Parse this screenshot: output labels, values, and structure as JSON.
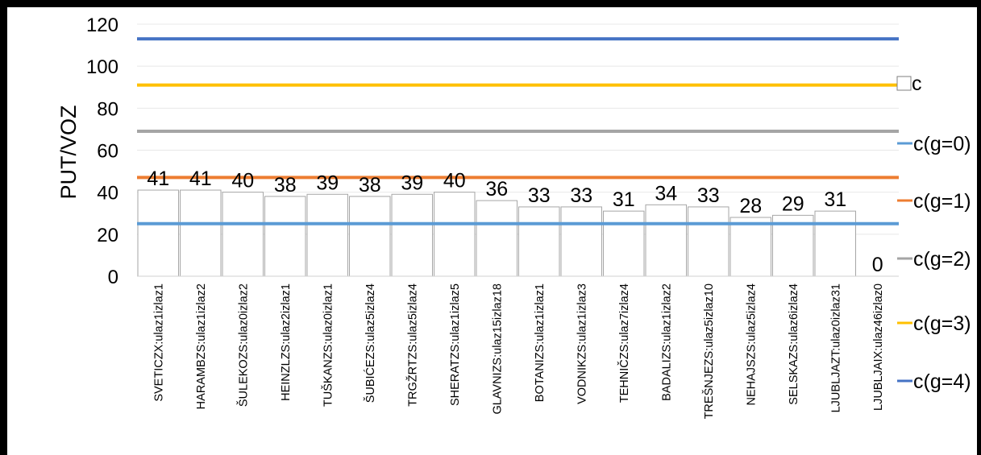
{
  "chart_data": {
    "type": "bar",
    "ylabel": "PUT/VOZ",
    "ylim": [
      0,
      120
    ],
    "yticks": [
      0,
      20,
      40,
      60,
      80,
      100,
      120
    ],
    "grid": true,
    "legend_position": "right",
    "categories": [
      "SVETICZX:ulaz1izlaz1",
      "HARAMBZS:ulaz1izlaz2",
      "ŠULEKOZS:ulaz0izlaz2",
      "HEINZLZS:ulaz2izlaz1",
      "TUŠKANZS:ulaz0izlaz1",
      "ŠUBIĆEZS:ulaz5izlaz4",
      "TRGŽRTZS:ulaz5izlaz4",
      "SHERATZS:ulaz1izlaz5",
      "GLAVNIZS:ulaz15izlaz18",
      "BOTANIZS:ulaz1izlaz1",
      "VODNIKZS:ulaz1izlaz3",
      "TEHNIČZS:ulaz7izlaz4",
      "BADALIZS:ulaz1izlaz2",
      "TREŠNJEZS:ulaz5izlaz10",
      "NEHAJSZS:ulaz5izlaz4",
      "SELSKAZS:ulaz6izlaz4",
      "LJUBLJAZT:ulaz0izlaz31",
      "LJUBLJAIX:ulaz46izlaz0"
    ],
    "bar_series": {
      "name": "c",
      "values": [
        41,
        41,
        40,
        38,
        39,
        38,
        39,
        40,
        36,
        33,
        33,
        31,
        34,
        33,
        28,
        29,
        31,
        0
      ],
      "data_labels": [
        "41",
        "41",
        "40",
        "38",
        "39",
        "38",
        "39",
        "40",
        "36",
        "33",
        "33",
        "31",
        "34",
        "33",
        "28",
        "29",
        "31",
        "0"
      ],
      "fill": "#ffffff",
      "stroke": "#a6a6a6"
    },
    "series": [
      {
        "name": "c(g=0)",
        "value": 25,
        "color": "#5b9bd5"
      },
      {
        "name": "c(g=1)",
        "value": 47,
        "color": "#ed7d31"
      },
      {
        "name": "c(g=2)",
        "value": 69,
        "color": "#a5a5a5"
      },
      {
        "name": "c(g=3)",
        "value": 91,
        "color": "#ffc000"
      },
      {
        "name": "c(g=4)",
        "value": 113,
        "color": "#4472c4"
      }
    ]
  }
}
